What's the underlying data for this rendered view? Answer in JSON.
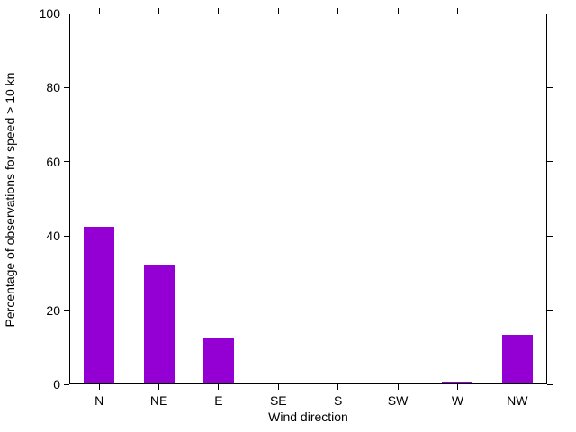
{
  "chart_data": {
    "type": "bar",
    "title": "",
    "xlabel": "Wind direction",
    "ylabel": "Percentage of observations for speed > 10 kn",
    "categories": [
      "N",
      "NE",
      "E",
      "SE",
      "S",
      "SW",
      "W",
      "NW"
    ],
    "values": [
      42.3,
      32.0,
      12.5,
      0,
      0,
      0,
      0.6,
      13.0
    ],
    "ylim": [
      0,
      100
    ],
    "yticks": [
      0,
      20,
      40,
      60,
      80,
      100
    ],
    "grid": false,
    "legend_position": "none",
    "bar_color": "#9400d3",
    "axis_color": "#000000",
    "background_color": "#ffffff",
    "tick_style": "outward, mirrored on top and right axes"
  }
}
